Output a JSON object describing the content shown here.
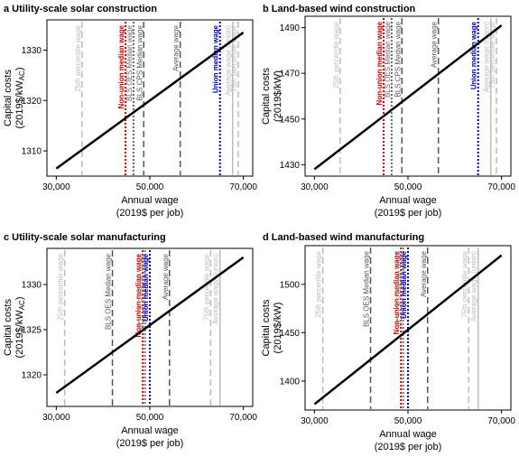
{
  "chart_data": [
    {
      "type": "line",
      "title": "a Utility-scale solar construction",
      "xlabel": "Annual wage",
      "xlabel2": "(2019$ per job)",
      "ylabel": "Capital costs",
      "ylabel2_main": "(2019$/kW",
      "ylabel2_sub": "AC",
      "ylabel2_end": ")",
      "xlim": [
        28000,
        72000
      ],
      "ylim": [
        1305,
        1336
      ],
      "xticks": [
        30000,
        50000,
        70000
      ],
      "xtick_labels": [
        "30,000",
        "50,000",
        "70,000"
      ],
      "yticks": [
        1310,
        1320,
        1330
      ],
      "ytick_labels": [
        "1310",
        "1320",
        "1330"
      ],
      "line": {
        "x": [
          30000,
          70000
        ],
        "y": [
          1306.5,
          1333.5
        ]
      },
      "vlines": [
        {
          "x": 35500,
          "label": "25th percentile wage",
          "color": "#bbbbbb",
          "style": "dashed"
        },
        {
          "x": 44800,
          "label": "Non-union median wage",
          "color": "#cc0000",
          "style": "dotted"
        },
        {
          "x": 46500,
          "label": "BLS OES Median wage",
          "color": "#666666",
          "style": "dotted"
        },
        {
          "x": 48700,
          "label": "BLS CPS Median wage",
          "color": "#555555",
          "style": "dashed"
        },
        {
          "x": 56500,
          "label": "Average wage",
          "color": "#555555",
          "style": "dashed"
        },
        {
          "x": 65000,
          "label": "Union median wage",
          "color": "#0000cc",
          "style": "dotted"
        },
        {
          "x": 67700,
          "label": "Average wage (union)",
          "color": "#bbbbbb",
          "style": "solid"
        },
        {
          "x": 68900,
          "label": "75th percentile wage",
          "color": "#bbbbbb",
          "style": "dashed"
        }
      ]
    },
    {
      "type": "line",
      "title": "b Land-based wind construction",
      "xlabel": "Annual wage",
      "xlabel2": "(2019$ per job)",
      "ylabel": "Capital costs",
      "ylabel2_main": "(2019$/kW)",
      "ylabel2_sub": "",
      "ylabel2_end": "",
      "xlim": [
        28000,
        72000
      ],
      "ylim": [
        1425,
        1495
      ],
      "xticks": [
        30000,
        50000,
        70000
      ],
      "xtick_labels": [
        "30,000",
        "50,000",
        "70,000"
      ],
      "yticks": [
        1430,
        1450,
        1470,
        1490
      ],
      "ytick_labels": [
        "1430",
        "1450",
        "1470",
        "1490"
      ],
      "line": {
        "x": [
          30000,
          70000
        ],
        "y": [
          1428,
          1491
        ]
      },
      "vlines": [
        {
          "x": 35500,
          "label": "25th percentile wage",
          "color": "#bbbbbb",
          "style": "dashed"
        },
        {
          "x": 44800,
          "label": "Non-union median wage",
          "color": "#cc0000",
          "style": "dotted"
        },
        {
          "x": 46500,
          "label": "BLS OES Median wage",
          "color": "#666666",
          "style": "dotted"
        },
        {
          "x": 48700,
          "label": "BLS CPS Median wage",
          "color": "#555555",
          "style": "dashed"
        },
        {
          "x": 56500,
          "label": "Average wage",
          "color": "#555555",
          "style": "dashed"
        },
        {
          "x": 65000,
          "label": "Union median wage",
          "color": "#0000cc",
          "style": "dotted"
        },
        {
          "x": 67700,
          "label": "Average wage (union)",
          "color": "#bbbbbb",
          "style": "solid"
        },
        {
          "x": 68900,
          "label": "75th percentile wage",
          "color": "#bbbbbb",
          "style": "dashed"
        }
      ]
    },
    {
      "type": "line",
      "title": "c Utility-scale solar manufacturing",
      "xlabel": "Annual wage",
      "xlabel2": "(2019$ per job)",
      "ylabel": "Capital costs",
      "ylabel2_main": "(2019$/kW",
      "ylabel2_sub": "AC",
      "ylabel2_end": ")",
      "xlim": [
        28000,
        72000
      ],
      "ylim": [
        1316.5,
        1334
      ],
      "xticks": [
        30000,
        50000,
        70000
      ],
      "xtick_labels": [
        "30,000",
        "50,000",
        "70,000"
      ],
      "yticks": [
        1320,
        1325,
        1330
      ],
      "ytick_labels": [
        "1320",
        "1325",
        "1330"
      ],
      "line": {
        "x": [
          30000,
          70000
        ],
        "y": [
          1318,
          1333
        ]
      },
      "vlines": [
        {
          "x": 31800,
          "label": "25th percentile wage",
          "color": "#bbbbbb",
          "style": "dashed"
        },
        {
          "x": 42000,
          "label": "BLS OES Median wage",
          "color": "#555555",
          "style": "dashed"
        },
        {
          "x": 48500,
          "label": "Non-union median wage",
          "color": "#cc0000",
          "style": "dotted"
        },
        {
          "x": 49000,
          "label": "BLS CPS Median wage",
          "color": "#888888",
          "style": "dotted"
        },
        {
          "x": 50000,
          "label": "Union median wage",
          "color": "#0000cc",
          "style": "dotted"
        },
        {
          "x": 54200,
          "label": "Average wage",
          "color": "#555555",
          "style": "dashed"
        },
        {
          "x": 63000,
          "label": "75th percentile wage",
          "color": "#bbbbbb",
          "style": "dashed"
        },
        {
          "x": 65000,
          "label": "Average wage (union)",
          "color": "#bbbbbb",
          "style": "solid"
        }
      ]
    },
    {
      "type": "line",
      "title": "d Land-based wind manufacturing",
      "xlabel": "Annual wage",
      "xlabel2": "(2019$ per job)",
      "ylabel": "Capital costs",
      "ylabel2_main": "(2019$/kW)",
      "ylabel2_sub": "",
      "ylabel2_end": "",
      "xlim": [
        28000,
        72000
      ],
      "ylim": [
        1370,
        1540
      ],
      "xticks": [
        30000,
        50000,
        70000
      ],
      "xtick_labels": [
        "30,000",
        "50,000",
        "70,000"
      ],
      "yticks": [
        1400,
        1450,
        1500
      ],
      "ytick_labels": [
        "1400",
        "1450",
        "1500"
      ],
      "line": {
        "x": [
          30000,
          70000
        ],
        "y": [
          1376,
          1530
        ]
      },
      "vlines": [
        {
          "x": 31800,
          "label": "25th percentile wage",
          "color": "#bbbbbb",
          "style": "dashed"
        },
        {
          "x": 42000,
          "label": "BLS OES Median wage",
          "color": "#555555",
          "style": "dashed"
        },
        {
          "x": 48500,
          "label": "Non-union median wage",
          "color": "#cc0000",
          "style": "dotted"
        },
        {
          "x": 49000,
          "label": "BLS CPS Median wage",
          "color": "#888888",
          "style": "dotted"
        },
        {
          "x": 50000,
          "label": "Union median wage",
          "color": "#0000cc",
          "style": "dotted"
        },
        {
          "x": 54200,
          "label": "Average wage",
          "color": "#555555",
          "style": "dashed"
        },
        {
          "x": 63000,
          "label": "75th percentile wage",
          "color": "#bbbbbb",
          "style": "dashed"
        },
        {
          "x": 65000,
          "label": "Average wage (union)",
          "color": "#bbbbbb",
          "style": "solid"
        }
      ]
    }
  ]
}
